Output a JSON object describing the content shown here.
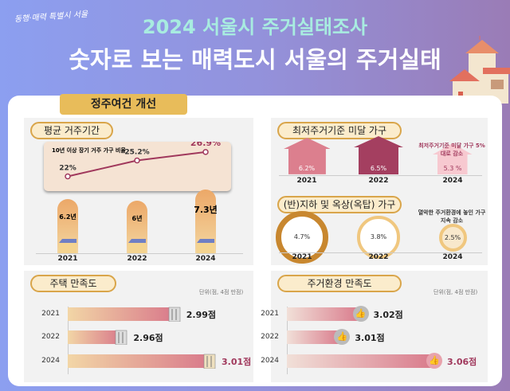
{
  "header": {
    "logo": "동행·매력 특별시 서울",
    "title": "2024 서울시 주거실태조사",
    "subtitle": "숫자로 보는 매력도시 서울의 주거실태"
  },
  "section_tag": "정주여건 개선",
  "colors": {
    "accent": "#a0385c",
    "gold": "#e8bc5a",
    "bg_left": "#8c9ff0",
    "bg_right": "#9a7cb6"
  },
  "chart_data": [
    {
      "type": "line",
      "title": "10년 이상 장기 거주 가구 비율",
      "categories": [
        "2021",
        "2022",
        "2024"
      ],
      "values": [
        22,
        25.2,
        26.9
      ],
      "labels": [
        "22%",
        "25.2%",
        "26.9%"
      ]
    },
    {
      "type": "bar",
      "title": "평균 거주기간",
      "categories": [
        "2021",
        "2022",
        "2024"
      ],
      "values": [
        6.2,
        6,
        7.3
      ],
      "labels": [
        "6.2년",
        "6년",
        "7.3년"
      ]
    },
    {
      "type": "bar",
      "title": "최저주거기준 미달 가구",
      "categories": [
        "2021",
        "2022",
        "2024"
      ],
      "values": [
        6.2,
        6.5,
        5.3
      ],
      "labels": [
        "6.2%",
        "6.5%",
        "5.3 %"
      ],
      "annotation": "최저주거기준 미달 가구 5%대로 감소"
    },
    {
      "type": "bar",
      "title": "(반)지하 및 옥상(옥탑) 가구",
      "categories": [
        "2021",
        "2022",
        "2024"
      ],
      "values": [
        4.7,
        3.8,
        2.5
      ],
      "labels": [
        "4.7%",
        "3.8%",
        "2.5%"
      ],
      "annotation": "열악한 주거환경에 놓인 가구 지속 감소"
    },
    {
      "type": "bar",
      "title": "주택 만족도",
      "unit": "단위(점, 4점 만점)",
      "categories": [
        "2021",
        "2022",
        "2024"
      ],
      "values": [
        2.99,
        2.96,
        3.01
      ],
      "labels": [
        "2.99점",
        "2.96점",
        "3.01점"
      ]
    },
    {
      "type": "bar",
      "title": "주거환경 만족도",
      "unit": "단위(점, 4점 만점)",
      "categories": [
        "2021",
        "2022",
        "2024"
      ],
      "values": [
        3.02,
        3.01,
        3.06
      ],
      "labels": [
        "3.02점",
        "3.01점",
        "3.06점"
      ]
    }
  ]
}
